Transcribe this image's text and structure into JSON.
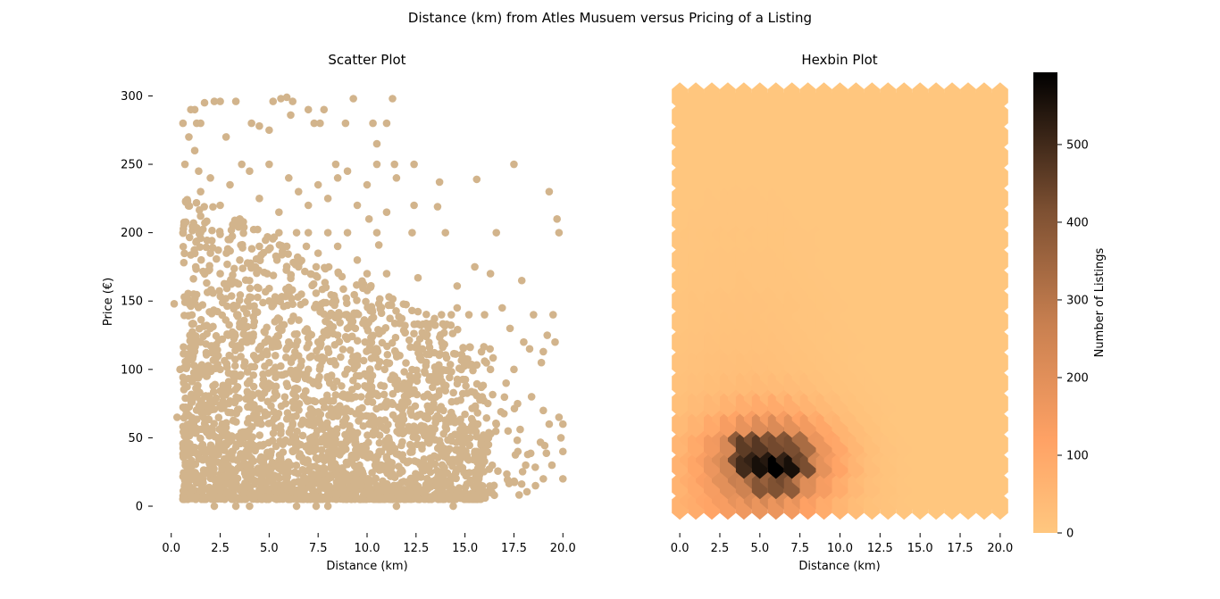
{
  "figure": {
    "suptitle": "Distance (km) from Atles Musuem versus Pricing of a Listing"
  },
  "chart_data": [
    {
      "type": "scatter",
      "title": "Scatter Plot",
      "xlabel": "Distance (km)",
      "ylabel": "Price (€)",
      "xlim": [
        -0.9,
        20.9
      ],
      "ylim": [
        -15,
        314
      ],
      "xticks": [
        "0.0",
        "2.5",
        "5.0",
        "7.5",
        "10.0",
        "12.5",
        "15.0",
        "17.5",
        "20.0"
      ],
      "yticks": [
        "0",
        "50",
        "100",
        "150",
        "200",
        "250",
        "300"
      ],
      "grid": false,
      "point_color": "#d2b48c",
      "points": [
        [
          0.15,
          148
        ],
        [
          0.3,
          65
        ],
        [
          0.45,
          100
        ],
        [
          0.6,
          280
        ],
        [
          0.6,
          200
        ],
        [
          0.7,
          250
        ],
        [
          0.9,
          270
        ],
        [
          1.0,
          290
        ],
        [
          1.2,
          290
        ],
        [
          1.3,
          280
        ],
        [
          1.5,
          280
        ],
        [
          1.2,
          260
        ],
        [
          1.4,
          245
        ],
        [
          1.7,
          295
        ],
        [
          2.2,
          296
        ],
        [
          2.5,
          296
        ],
        [
          2.8,
          270
        ],
        [
          3.3,
          296
        ],
        [
          3.6,
          250
        ],
        [
          4.1,
          280
        ],
        [
          4.5,
          278
        ],
        [
          5.0,
          275
        ],
        [
          5.2,
          296
        ],
        [
          5.6,
          298
        ],
        [
          5.9,
          299
        ],
        [
          6.2,
          296
        ],
        [
          6.1,
          286
        ],
        [
          7.0,
          290
        ],
        [
          7.3,
          280
        ],
        [
          7.6,
          280
        ],
        [
          7.8,
          290
        ],
        [
          8.4,
          250
        ],
        [
          8.9,
          280
        ],
        [
          9.3,
          298
        ],
        [
          10.3,
          280
        ],
        [
          10.5,
          265
        ],
        [
          11.0,
          280
        ],
        [
          11.3,
          298
        ],
        [
          11.4,
          250
        ],
        [
          11.5,
          240
        ],
        [
          12.4,
          250
        ],
        [
          13.7,
          237
        ],
        [
          15.6,
          239
        ],
        [
          17.5,
          250
        ],
        [
          19.3,
          230
        ],
        [
          19.7,
          210
        ],
        [
          19.8,
          200
        ],
        [
          12.4,
          220
        ],
        [
          13.6,
          219
        ],
        [
          10.6,
          191
        ],
        [
          10.1,
          210
        ],
        [
          12.3,
          200
        ],
        [
          12.6,
          167
        ],
        [
          14.0,
          200
        ],
        [
          14.6,
          161
        ],
        [
          15.5,
          175
        ],
        [
          16.3,
          170
        ],
        [
          16.6,
          200
        ],
        [
          17.9,
          165
        ],
        [
          14.6,
          145
        ],
        [
          14.3,
          140
        ],
        [
          13.8,
          140
        ],
        [
          15.2,
          140
        ],
        [
          16.0,
          140
        ],
        [
          16.9,
          145
        ],
        [
          17.3,
          130
        ],
        [
          18.0,
          120
        ],
        [
          19.2,
          125
        ],
        [
          19.0,
          113
        ],
        [
          18.3,
          115
        ],
        [
          19.6,
          120
        ],
        [
          19.5,
          140
        ],
        [
          18.5,
          140
        ],
        [
          16.3,
          100
        ],
        [
          17.1,
          90
        ],
        [
          17.5,
          100
        ],
        [
          18.9,
          105
        ],
        [
          18.4,
          80
        ],
        [
          19.0,
          70
        ],
        [
          19.3,
          60
        ],
        [
          19.8,
          65
        ],
        [
          19.9,
          50
        ],
        [
          20.0,
          40
        ],
        [
          20.0,
          60
        ],
        [
          20.0,
          20
        ],
        [
          19.0,
          20
        ],
        [
          18.6,
          15
        ],
        [
          18.1,
          30
        ],
        [
          17.7,
          40
        ],
        [
          17.2,
          55
        ],
        [
          16.6,
          60
        ],
        [
          16.2,
          45
        ],
        [
          15.6,
          40
        ],
        [
          15.1,
          35
        ],
        [
          14.8,
          55
        ],
        [
          14.2,
          65
        ],
        [
          13.7,
          48
        ],
        [
          12.8,
          55
        ],
        [
          12.2,
          45
        ],
        [
          11.6,
          38
        ],
        [
          11.1,
          50
        ],
        [
          10.6,
          30
        ],
        [
          10.1,
          60
        ],
        [
          9.6,
          40
        ],
        [
          9.1,
          55
        ],
        [
          8.6,
          38
        ],
        [
          8.1,
          50
        ],
        [
          7.6,
          35
        ],
        [
          7.1,
          62
        ],
        [
          6.6,
          45
        ],
        [
          6.1,
          30
        ],
        [
          5.6,
          55
        ],
        [
          5.1,
          40
        ],
        [
          4.6,
          60
        ],
        [
          4.1,
          35
        ],
        [
          3.6,
          50
        ],
        [
          3.1,
          40
        ],
        [
          2.6,
          60
        ],
        [
          2.1,
          35
        ],
        [
          1.6,
          45
        ],
        [
          1.1,
          30
        ],
        [
          0.7,
          40
        ],
        [
          0.9,
          60
        ],
        [
          1.3,
          80
        ],
        [
          1.8,
          95
        ],
        [
          2.4,
          110
        ],
        [
          2.9,
          125
        ],
        [
          3.4,
          140
        ],
        [
          3.9,
          150
        ],
        [
          4.4,
          160
        ],
        [
          4.9,
          170
        ],
        [
          5.4,
          180
        ],
        [
          5.9,
          190
        ],
        [
          6.4,
          200
        ],
        [
          6.9,
          190
        ],
        [
          7.4,
          175
        ],
        [
          7.9,
          160
        ],
        [
          8.4,
          150
        ],
        [
          8.9,
          140
        ],
        [
          9.4,
          130
        ],
        [
          9.9,
          120
        ],
        [
          10.4,
          110
        ],
        [
          10.9,
          100
        ],
        [
          11.4,
          95
        ],
        [
          11.9,
          90
        ],
        [
          12.4,
          85
        ],
        [
          12.9,
          80
        ],
        [
          13.4,
          75
        ],
        [
          13.9,
          70
        ],
        [
          14.4,
          65
        ],
        [
          0.8,
          25
        ],
        [
          1.0,
          10
        ],
        [
          2.2,
          0
        ],
        [
          3.3,
          0
        ],
        [
          4.0,
          0
        ],
        [
          6.4,
          0
        ],
        [
          7.4,
          0
        ],
        [
          8.0,
          0
        ],
        [
          11.5,
          0
        ],
        [
          14.4,
          0
        ],
        [
          16.5,
          8
        ],
        [
          15.0,
          8
        ],
        [
          13.5,
          15
        ],
        [
          12.0,
          12
        ],
        [
          10.5,
          15
        ],
        [
          9.0,
          12
        ],
        [
          7.5,
          10
        ],
        [
          6.0,
          8
        ],
        [
          4.5,
          12
        ],
        [
          3.0,
          10
        ],
        [
          1.5,
          200
        ],
        [
          2.0,
          185
        ],
        [
          2.5,
          170
        ],
        [
          3.0,
          195
        ],
        [
          3.5,
          180
        ],
        [
          4.0,
          165
        ],
        [
          4.5,
          190
        ],
        [
          5.0,
          150
        ],
        [
          5.5,
          200
        ],
        [
          6.0,
          160
        ],
        [
          6.5,
          175
        ],
        [
          7.0,
          200
        ],
        [
          7.5,
          185
        ],
        [
          8.0,
          200
        ],
        [
          8.5,
          190
        ],
        [
          9.0,
          200
        ],
        [
          9.5,
          180
        ],
        [
          10.0,
          170
        ],
        [
          10.5,
          200
        ],
        [
          11.0,
          170
        ],
        [
          1.5,
          120
        ],
        [
          2.0,
          130
        ],
        [
          2.5,
          100
        ],
        [
          3.0,
          110
        ],
        [
          3.5,
          95
        ],
        [
          4.0,
          125
        ],
        [
          4.5,
          115
        ],
        [
          5.0,
          105
        ],
        [
          5.5,
          130
        ],
        [
          6.0,
          120
        ],
        [
          6.5,
          110
        ],
        [
          7.0,
          100
        ],
        [
          7.5,
          120
        ],
        [
          8.0,
          115
        ],
        [
          8.5,
          125
        ],
        [
          9.0,
          100
        ],
        [
          9.5,
          110
        ],
        [
          10.0,
          95
        ],
        [
          10.5,
          115
        ],
        [
          11.0,
          105
        ],
        [
          1.5,
          230
        ],
        [
          2.0,
          240
        ],
        [
          2.5,
          220
        ],
        [
          3.0,
          235
        ],
        [
          3.5,
          210
        ],
        [
          4.0,
          245
        ],
        [
          4.5,
          225
        ],
        [
          5.0,
          250
        ],
        [
          5.5,
          215
        ],
        [
          6.0,
          240
        ],
        [
          6.5,
          230
        ],
        [
          7.0,
          220
        ],
        [
          7.5,
          235
        ],
        [
          8.0,
          225
        ],
        [
          8.5,
          240
        ],
        [
          9.0,
          245
        ],
        [
          9.5,
          220
        ],
        [
          10.0,
          235
        ],
        [
          10.5,
          250
        ],
        [
          11.0,
          215
        ]
      ]
    },
    {
      "type": "heatmap",
      "title": "Hexbin Plot",
      "xlabel": "Distance (km)",
      "xlim": [
        -0.9,
        20.9
      ],
      "ylim": [
        -15,
        314
      ],
      "xticks": [
        "0.0",
        "2.5",
        "5.0",
        "7.5",
        "10.0",
        "12.5",
        "15.0",
        "17.5",
        "20.0"
      ],
      "grid": false,
      "colorbar": {
        "label": "Number of Listings",
        "ticks": [
          "0",
          "100",
          "200",
          "300",
          "400",
          "500"
        ],
        "range": [
          0,
          593
        ],
        "cmap": "copper_r"
      },
      "gridsize": [
        20,
        20
      ],
      "x_range": [
        0.0,
        20.0
      ],
      "y_range": [
        0.0,
        300.0
      ],
      "peak_cells": [
        {
          "x": 5.0,
          "y": 30,
          "count": 560
        },
        {
          "x": 6.0,
          "y": 30,
          "count": 593
        },
        {
          "x": 7.0,
          "y": 30,
          "count": 560
        },
        {
          "x": 4.0,
          "y": 30,
          "count": 500
        },
        {
          "x": 8.0,
          "y": 30,
          "count": 420
        },
        {
          "x": 4.5,
          "y": 37.5,
          "count": 520
        },
        {
          "x": 5.5,
          "y": 37.5,
          "count": 540
        },
        {
          "x": 6.5,
          "y": 37.5,
          "count": 520
        },
        {
          "x": 3.5,
          "y": 37.5,
          "count": 430
        },
        {
          "x": 7.5,
          "y": 37.5,
          "count": 440
        },
        {
          "x": 4.0,
          "y": 45,
          "count": 460
        },
        {
          "x": 5.0,
          "y": 45,
          "count": 470
        },
        {
          "x": 6.0,
          "y": 45,
          "count": 430
        },
        {
          "x": 7.0,
          "y": 45,
          "count": 420
        },
        {
          "x": 8.0,
          "y": 45,
          "count": 330
        },
        {
          "x": 4.5,
          "y": 52.5,
          "count": 420
        },
        {
          "x": 5.5,
          "y": 52.5,
          "count": 410
        },
        {
          "x": 6.5,
          "y": 52.5,
          "count": 400
        },
        {
          "x": 3.5,
          "y": 52.5,
          "count": 380
        },
        {
          "x": 7.5,
          "y": 52.5,
          "count": 330
        },
        {
          "x": 5.0,
          "y": 15,
          "count": 400
        },
        {
          "x": 6.0,
          "y": 15,
          "count": 410
        },
        {
          "x": 7.0,
          "y": 15,
          "count": 380
        },
        {
          "x": 4.0,
          "y": 22.5,
          "count": 330
        },
        {
          "x": 6.5,
          "y": 22.5,
          "count": 430
        }
      ]
    }
  ]
}
